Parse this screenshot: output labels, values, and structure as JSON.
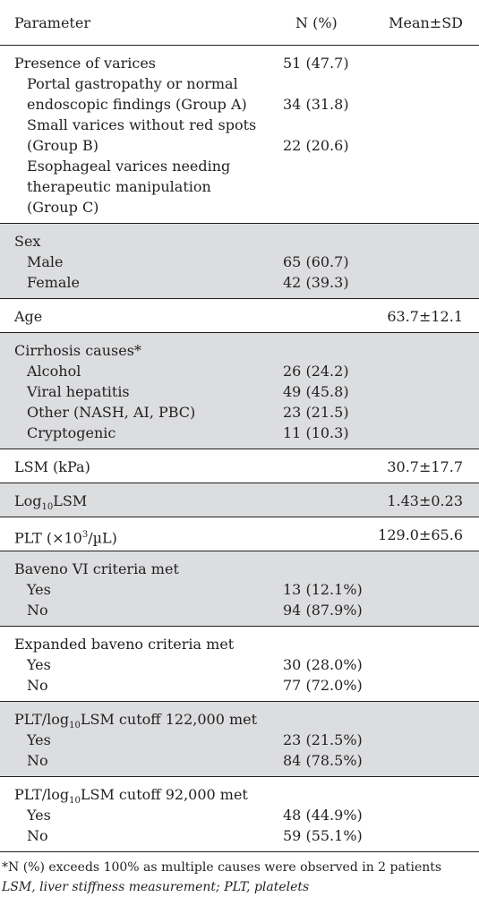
{
  "header": {
    "parameter": "Parameter",
    "n_pct": "N (%)",
    "mean_sd": "Mean±SD"
  },
  "sections": [
    {
      "shaded": false,
      "rows": [
        {
          "label": "Presence of varices",
          "n": "51 (47.7)",
          "mean": "",
          "indent": false
        },
        {
          "label": "Portal gastropathy or normal",
          "n": "",
          "mean": "",
          "indent": true
        },
        {
          "label": "endoscopic findings (Group A)",
          "n": "34 (31.8)",
          "mean": "",
          "indent": true
        },
        {
          "label": "Small varices without red spots",
          "n": "",
          "mean": "",
          "indent": true
        },
        {
          "label": "(Group B)",
          "n": "22 (20.6)",
          "mean": "",
          "indent": true
        },
        {
          "label": "Esophageal varices needing",
          "n": "",
          "mean": "",
          "indent": true
        },
        {
          "label": "therapeutic manipulation",
          "n": "",
          "mean": "",
          "indent": true
        },
        {
          "label": "(Group C)",
          "n": "",
          "mean": "",
          "indent": true
        }
      ]
    },
    {
      "shaded": true,
      "rows": [
        {
          "label": "Sex",
          "n": "",
          "mean": "",
          "indent": false
        },
        {
          "label": "Male",
          "n": "65 (60.7)",
          "mean": "",
          "indent": true
        },
        {
          "label": "Female",
          "n": "42 (39.3)",
          "mean": "",
          "indent": true
        }
      ]
    },
    {
      "shaded": false,
      "rows": [
        {
          "label": "Age",
          "n": "",
          "mean": "63.7±12.1",
          "indent": false
        }
      ]
    },
    {
      "shaded": true,
      "rows": [
        {
          "label": "Cirrhosis causes*",
          "n": "",
          "mean": "",
          "indent": false
        },
        {
          "label": "Alcohol",
          "n": "26 (24.2)",
          "mean": "",
          "indent": true
        },
        {
          "label": "Viral hepatitis",
          "n": "49 (45.8)",
          "mean": "",
          "indent": true
        },
        {
          "label": "Other (NASH, AI, PBC)",
          "n": "23 (21.5)",
          "mean": "",
          "indent": true
        },
        {
          "label": "Cryptogenic",
          "n": "11 (10.3)",
          "mean": "",
          "indent": true
        }
      ]
    },
    {
      "shaded": false,
      "rows": [
        {
          "label": "LSM (kPa)",
          "n": "",
          "mean": "30.7±17.7",
          "indent": false
        }
      ]
    },
    {
      "shaded": true,
      "rows": [
        {
          "label_html": "Log<sub>10</sub>LSM",
          "label": "Log10LSM",
          "n": "",
          "mean": "1.43±0.23",
          "indent": false
        }
      ]
    },
    {
      "shaded": false,
      "rows": [
        {
          "label_html": "PLT (×10<sup>3</sup>/µL)",
          "label": "PLT (×103/µL)",
          "n": "",
          "mean": "129.0±65.6",
          "indent": false
        }
      ]
    },
    {
      "shaded": true,
      "rows": [
        {
          "label": "Baveno VI criteria met",
          "n": "",
          "mean": "",
          "indent": false
        },
        {
          "label": "Yes",
          "n": "13 (12.1%)",
          "mean": "",
          "indent": true
        },
        {
          "label": "No",
          "n": "94 (87.9%)",
          "mean": "",
          "indent": true
        }
      ]
    },
    {
      "shaded": false,
      "rows": [
        {
          "label": "Expanded baveno criteria met",
          "n": "",
          "mean": "",
          "indent": false
        },
        {
          "label": "Yes",
          "n": "30 (28.0%)",
          "mean": "",
          "indent": true
        },
        {
          "label": "No",
          "n": "77 (72.0%)",
          "mean": "",
          "indent": true
        }
      ]
    },
    {
      "shaded": true,
      "rows": [
        {
          "label_html": "PLT/log<sub>10</sub>LSM cutoff 122,000 met",
          "label": "PLT/log10LSM cutoff 122,000 met",
          "n": "",
          "mean": "",
          "indent": false
        },
        {
          "label": "Yes",
          "n": "23 (21.5%)",
          "mean": "",
          "indent": true
        },
        {
          "label": "No",
          "n": "84 (78.5%)",
          "mean": "",
          "indent": true
        }
      ]
    },
    {
      "shaded": false,
      "rows": [
        {
          "label_html": "PLT/log<sub>10</sub>LSM cutoff 92,000 met",
          "label": "PLT/log10LSM cutoff 92,000 met",
          "n": "",
          "mean": "",
          "indent": false
        },
        {
          "label": "Yes",
          "n": "48 (44.9%)",
          "mean": "",
          "indent": true
        },
        {
          "label": "No",
          "n": "59 (55.1%)",
          "mean": "",
          "indent": true
        }
      ]
    }
  ],
  "footnotes": {
    "asterisk": "*N (%) exceeds 100% as multiple causes were observed in 2 patients",
    "abbrev": "LSM, liver stiffness measurement; PLT, platelets"
  }
}
